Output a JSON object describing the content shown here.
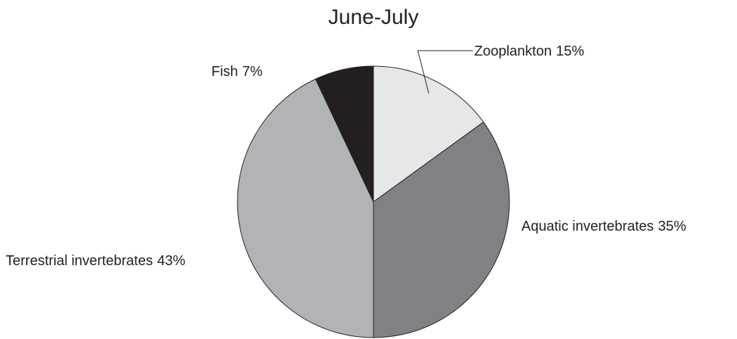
{
  "chart_data": {
    "type": "pie",
    "title": "June-July",
    "categories": [
      "Zooplankton",
      "Aquatic invertebrates",
      "Terrestrial invertebrates",
      "Fish"
    ],
    "values": [
      15,
      35,
      43,
      7
    ],
    "value_labels": [
      "15%",
      "35%",
      "43%",
      "7%"
    ],
    "colors": [
      "#e6e7e8",
      "#808184",
      "#b1b3b6",
      "#231f20"
    ]
  }
}
